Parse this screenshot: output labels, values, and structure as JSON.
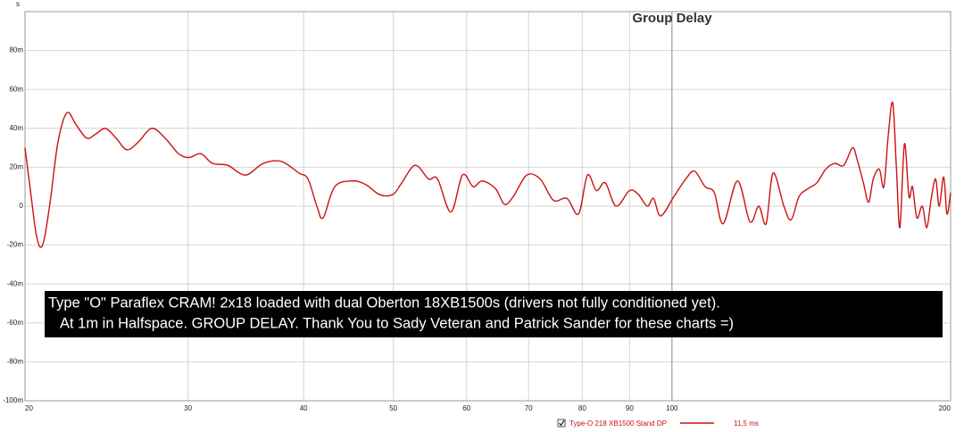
{
  "chart_data": {
    "type": "line",
    "title": "Group Delay",
    "y_axis_label": "s",
    "x_scale": "log",
    "grid": true,
    "xlim": [
      20,
      200
    ],
    "ylim": [
      -0.1,
      0.1
    ],
    "xticks": [
      20,
      30,
      40,
      50,
      60,
      70,
      80,
      90,
      100,
      200
    ],
    "yticks": [
      {
        "value": -0.1,
        "label": "-100m"
      },
      {
        "value": -0.08,
        "label": "-80m"
      },
      {
        "value": -0.06,
        "label": "-60m"
      },
      {
        "value": -0.04,
        "label": "-40m"
      },
      {
        "value": -0.02,
        "label": "-20m"
      },
      0,
      {
        "value": 0.02,
        "label": "20m"
      },
      {
        "value": 0.04,
        "label": "40m"
      },
      {
        "value": 0.06,
        "label": "60m"
      },
      {
        "value": 0.08,
        "label": "80m"
      }
    ],
    "annotation": [
      "Type \"O\" Paraflex CRAM! 2x18 loaded with dual Oberton 18XB1500s (drivers not fully conditioned yet).",
      "At 1m in Halfspace. GROUP DELAY.  Thank You to Sady Veteran and Patrick Sander for these charts =)"
    ],
    "x": [
      20,
      20.31,
      20.54,
      20.77,
      21.0,
      21.33,
      21.71,
      22.2,
      22.7,
      23.31,
      23.84,
      24.43,
      25.09,
      25.76,
      26.52,
      27.41,
      28.34,
      29.3,
      30.09,
      30.98,
      31.88,
      33.11,
      34.61,
      36.18,
      37.83,
      39.55,
      40.43,
      41.34,
      41.99,
      43.22,
      45.19,
      46.72,
      48.3,
      49.94,
      51.06,
      52.79,
      54.58,
      55.81,
      57.7,
      59.39,
      60.99,
      62.36,
      64.47,
      65.92,
      67.4,
      69.68,
      72.04,
      74.48,
      77.01,
      79.26,
      81.04,
      82.86,
      84.72,
      87.01,
      89.96,
      91.98,
      94.04,
      95.52,
      97.23,
      100.5,
      103.5,
      105.8,
      108.6,
      111.1,
      113.6,
      117.7,
      121.4,
      124.1,
      126.4,
      128.6,
      132.1,
      134.5,
      137.2,
      140.3,
      143.4,
      146.6,
      149.9,
      153.3,
      156.7,
      158.5,
      161.0,
      163.1,
      165.0,
      167.5,
      169.4,
      171.3,
      173.2,
      174.8,
      176.3,
      178.3,
      180.3,
      181.9,
      183.9,
      186.4,
      188.5,
      190.6,
      192.7,
      194.4,
      196.6,
      198.2,
      200
    ],
    "series": [
      {
        "name": "Type-O 218 XB1500 Stand DP",
        "legend_value": "11,5 ms",
        "color": "#cc1111",
        "values": [
          0.03,
          0.005,
          -0.013,
          -0.021,
          -0.016,
          0.005,
          0.033,
          0.048,
          0.042,
          0.035,
          0.037,
          0.04,
          0.035,
          0.029,
          0.033,
          0.04,
          0.035,
          0.027,
          0.025,
          0.027,
          0.022,
          0.021,
          0.016,
          0.022,
          0.023,
          0.017,
          0.014,
          0.0,
          -0.006,
          0.01,
          0.013,
          0.011,
          0.006,
          0.006,
          0.012,
          0.021,
          0.014,
          0.014,
          -0.003,
          0.016,
          0.01,
          0.013,
          0.009,
          0.001,
          0.005,
          0.016,
          0.014,
          0.003,
          0.004,
          -0.004,
          0.016,
          0.008,
          0.012,
          0.0,
          0.008,
          0.006,
          0.0,
          0.004,
          -0.005,
          0.005,
          0.014,
          0.018,
          0.01,
          0.007,
          -0.009,
          0.013,
          -0.008,
          0.0,
          -0.009,
          0.017,
          0.0,
          -0.007,
          0.005,
          0.009,
          0.012,
          0.019,
          0.022,
          0.021,
          0.03,
          0.024,
          0.012,
          0.002,
          0.014,
          0.019,
          0.01,
          0.037,
          0.053,
          0.019,
          -0.011,
          0.032,
          0.005,
          0.01,
          -0.006,
          0.0,
          -0.011,
          0.004,
          0.014,
          0.0,
          0.015,
          -0.004,
          0.007
        ]
      }
    ]
  }
}
